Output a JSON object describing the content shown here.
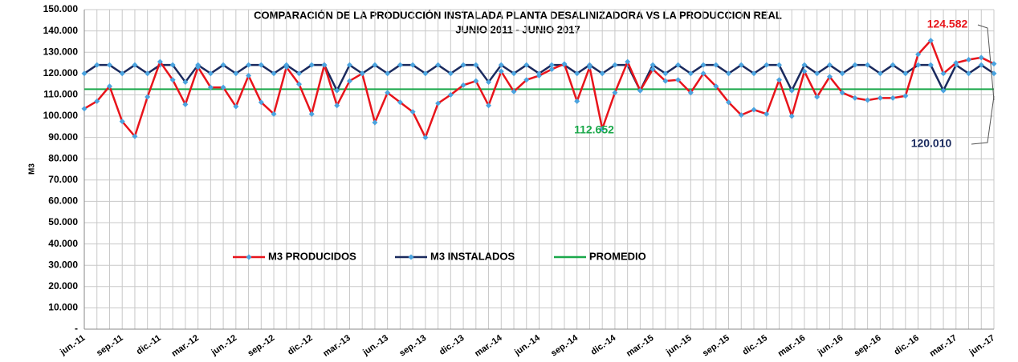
{
  "chart_data": {
    "type": "line",
    "title": "COMPARACIÓN DE LA  PRODUCCIÓN INSTALADA PLANTA DESALINIZADORA VS LA PRODUCCION REAL",
    "subtitle": "JUNIO 2011 - JUNIO 2017",
    "y_label": "M3",
    "categories": [
      "jun.-11",
      null,
      null,
      "sep.-11",
      null,
      null,
      "dic.-11",
      null,
      null,
      "mar.-12",
      null,
      null,
      "jun.-12",
      null,
      null,
      "sep.-12",
      null,
      null,
      "dic.-12",
      null,
      null,
      "mar.-13",
      null,
      null,
      "jun.-13",
      null,
      null,
      "sep.-13",
      null,
      null,
      "dic.-13",
      null,
      null,
      "mar.-14",
      null,
      null,
      "jun.-14",
      null,
      null,
      "sep.-14",
      null,
      null,
      "dic.-14",
      null,
      null,
      "mar.-15",
      null,
      null,
      "jun.-15",
      null,
      null,
      "sep.-15",
      null,
      null,
      "dic.-15",
      null,
      null,
      "mar.-16",
      null,
      null,
      "jun.-16",
      null,
      null,
      "sep.-16",
      null,
      null,
      "dic.-16",
      null,
      null,
      "mar.-17",
      null,
      null,
      "jun.-17"
    ],
    "series": [
      {
        "name": "M3 PRODUCIDOS",
        "color": "#e8141b",
        "marker_color": "#4aa3df",
        "values": [
          103500,
          107000,
          114000,
          97500,
          90500,
          109000,
          125500,
          117000,
          105500,
          123000,
          113500,
          113500,
          104500,
          119000,
          106500,
          101000,
          123000,
          115000,
          101000,
          124000,
          105000,
          116500,
          120000,
          97000,
          111000,
          106500,
          102000,
          90000,
          106000,
          110000,
          114500,
          116500,
          105000,
          121000,
          111500,
          117000,
          119000,
          122000,
          124500,
          107000,
          123000,
          94000,
          111000,
          125500,
          112000,
          122000,
          116500,
          117000,
          111000,
          120000,
          114000,
          106500,
          100500,
          103000,
          101000,
          117000,
          100000,
          121000,
          109000,
          118500,
          111000,
          108500,
          107500,
          108500,
          108500,
          109500,
          129000,
          135500,
          120000,
          125000,
          126500,
          127500,
          124582
        ]
      },
      {
        "name": "M3 INSTALADOS",
        "color": "#1a2a5e",
        "marker_color": "#4aa3df",
        "values": [
          120000,
          124000,
          124000,
          120000,
          124000,
          120000,
          124000,
          124000,
          116000,
          124000,
          120000,
          124000,
          120000,
          124000,
          124000,
          120000,
          124000,
          120000,
          124000,
          124000,
          112000,
          124000,
          120000,
          124000,
          120000,
          124000,
          124000,
          120000,
          124000,
          120000,
          124000,
          124000,
          116000,
          124000,
          120000,
          124000,
          120000,
          124000,
          124000,
          120000,
          124000,
          120000,
          124000,
          124000,
          112000,
          124000,
          120000,
          124000,
          120000,
          124000,
          124000,
          120000,
          124000,
          120000,
          124000,
          124000,
          112000,
          124000,
          120000,
          124000,
          120000,
          124000,
          124000,
          120000,
          124000,
          120000,
          124000,
          124000,
          112000,
          124000,
          120000,
          124000,
          120010
        ]
      },
      {
        "name": "PROMEDIO",
        "color": "#1aa84a",
        "values": [
          112652,
          112652,
          112652,
          112652,
          112652,
          112652,
          112652,
          112652,
          112652,
          112652,
          112652,
          112652,
          112652,
          112652,
          112652,
          112652,
          112652,
          112652,
          112652,
          112652,
          112652,
          112652,
          112652,
          112652,
          112652,
          112652,
          112652,
          112652,
          112652,
          112652,
          112652,
          112652,
          112652,
          112652,
          112652,
          112652,
          112652,
          112652,
          112652,
          112652,
          112652,
          112652,
          112652,
          112652,
          112652,
          112652,
          112652,
          112652,
          112652,
          112652,
          112652,
          112652,
          112652,
          112652,
          112652,
          112652,
          112652,
          112652,
          112652,
          112652,
          112652,
          112652,
          112652,
          112652,
          112652,
          112652,
          112652,
          112652,
          112652,
          112652,
          112652,
          112652,
          112652
        ]
      }
    ],
    "annotations": [
      {
        "text": "124.582",
        "color": "#e8141b"
      },
      {
        "text": "112.652",
        "color": "#1aa84a"
      },
      {
        "text": "120.010",
        "color": "#1a2a5e"
      }
    ],
    "ylim": [
      0,
      150000
    ],
    "yticks": [
      {
        "value": 0,
        "label": "-"
      },
      {
        "value": 10000,
        "label": "10.000"
      },
      {
        "value": 20000,
        "label": "20.000"
      },
      {
        "value": 30000,
        "label": "30.000"
      },
      {
        "value": 40000,
        "label": "40.000"
      },
      {
        "value": 50000,
        "label": "50.000"
      },
      {
        "value": 60000,
        "label": "60.000"
      },
      {
        "value": 70000,
        "label": "70.000"
      },
      {
        "value": 80000,
        "label": "80.000"
      },
      {
        "value": 90000,
        "label": "90.000"
      },
      {
        "value": 100000,
        "label": "100.000"
      },
      {
        "value": 110000,
        "label": "110.000"
      },
      {
        "value": 120000,
        "label": "120.000"
      },
      {
        "value": 130000,
        "label": "130.000"
      },
      {
        "value": 140000,
        "label": "140.000"
      },
      {
        "value": 150000,
        "label": "150.000"
      }
    ],
    "grid": true
  }
}
